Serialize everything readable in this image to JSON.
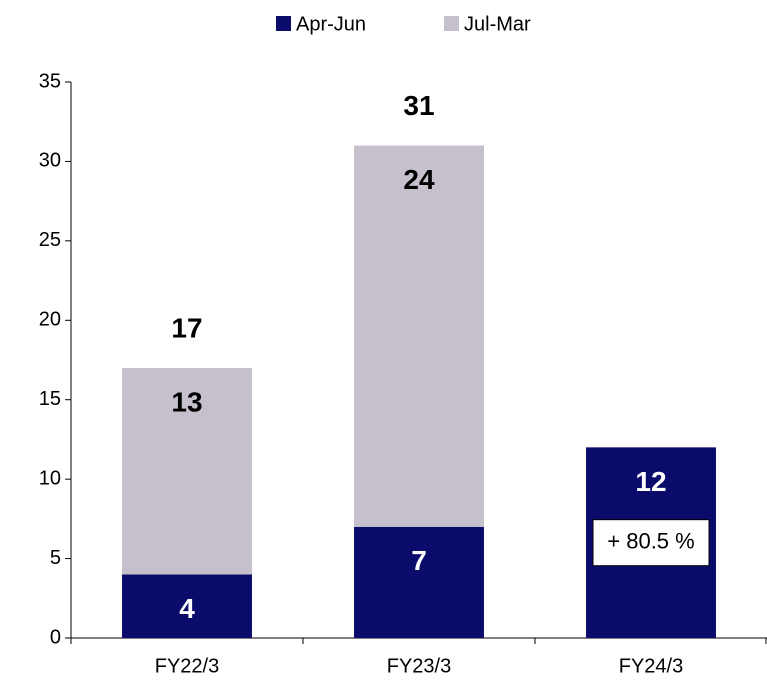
{
  "chart_data": {
    "type": "stacked-bar",
    "categories": [
      "FY22/3",
      "FY23/3",
      "FY24/3"
    ],
    "series": [
      {
        "name": "Apr-Jun",
        "color": "#0b0b6b",
        "values": [
          4,
          7,
          12
        ]
      },
      {
        "name": "Jul-Mar",
        "color": "#c5c0cc",
        "values": [
          13,
          24,
          null
        ]
      }
    ],
    "totals": [
      17,
      31,
      null
    ],
    "annotation": "+ 80.5 %",
    "ylim": [
      0,
      35
    ],
    "yticks": [
      0,
      5,
      10,
      15,
      20,
      25,
      30,
      35
    ],
    "legend": "top"
  }
}
